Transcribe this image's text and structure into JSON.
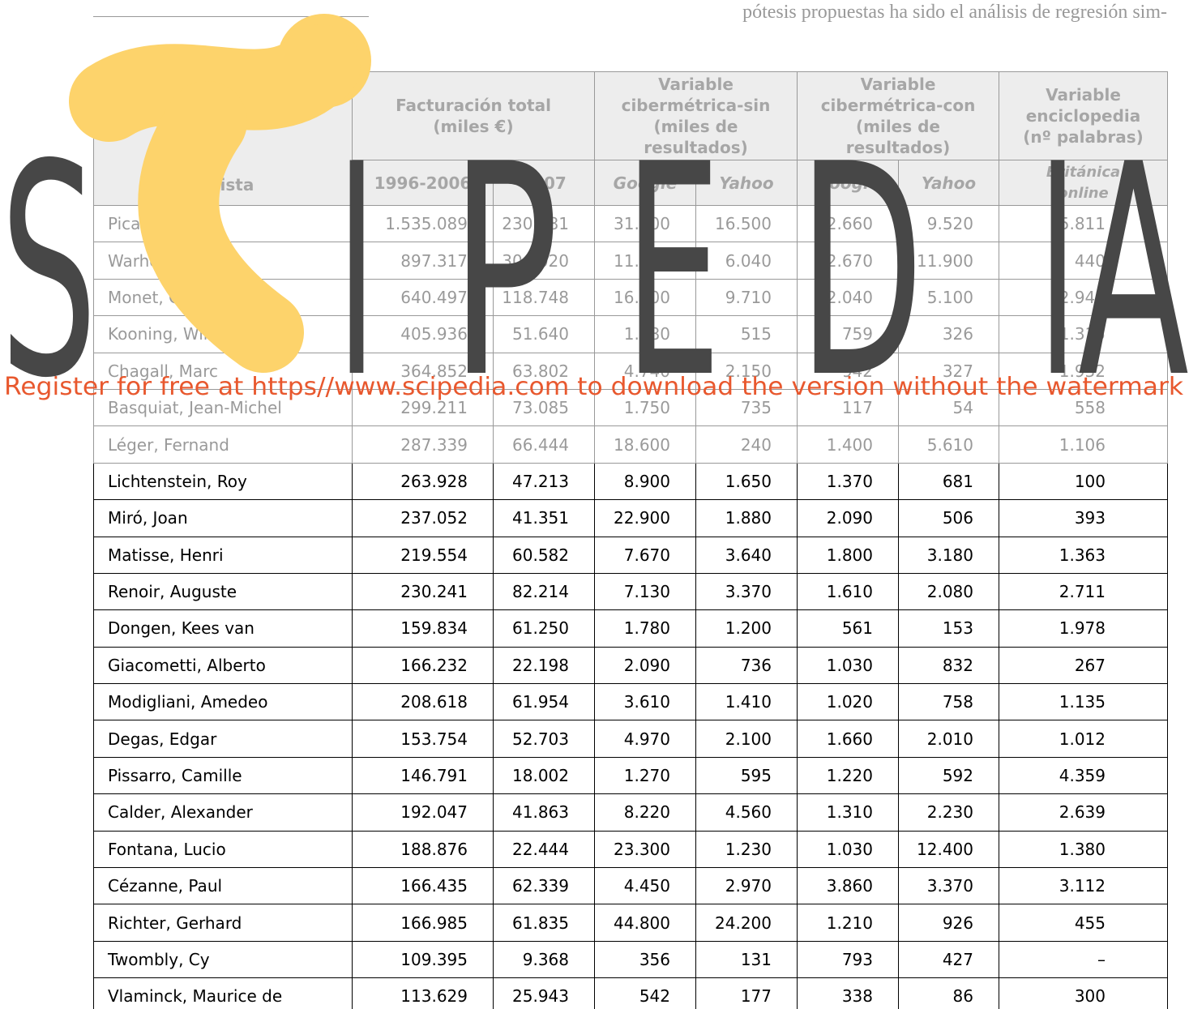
{
  "top_text": "pótesis propuestas ha sido el análisis de regresión sim-",
  "table": {
    "header": {
      "artist": "Artista",
      "groups": [
        {
          "lines": [
            "Facturación total",
            "(miles €)"
          ]
        },
        {
          "lines": [
            "Variable",
            "cibermétrica-sin",
            "(miles de",
            "resultados)"
          ]
        },
        {
          "lines": [
            "Variable",
            "cibermétrica-con",
            "(miles de",
            "resultados)"
          ]
        },
        {
          "lines": [
            "Variable",
            "enciclopedia",
            "(nº palabras)"
          ]
        }
      ],
      "sub": [
        "1996-2006",
        "2007",
        "Google",
        "Yahoo",
        "Google",
        "Yahoo",
        "Británica online"
      ]
    },
    "rows": [
      [
        "Picasso, Pablo",
        "1.535.089",
        "230.181",
        "31.000",
        "16.500",
        "2.660",
        "9.520",
        "5.811"
      ],
      [
        "Warhol, Andy",
        "897.317",
        "304.020",
        "11.000",
        "6.040",
        "2.670",
        "11.900",
        "440"
      ],
      [
        "Monet, Claude",
        "640.497",
        "118.748",
        "16.000",
        "9.710",
        "2.040",
        "5.100",
        "2.942"
      ],
      [
        "Kooning, Willem de",
        "405.936",
        "51.640",
        "1.080",
        "515",
        "759",
        "326",
        "1.315"
      ],
      [
        "Chagall, Marc",
        "364.852",
        "63.802",
        "4.740",
        "2.150",
        "942",
        "327",
        "1.932"
      ],
      [
        "Basquiat, Jean-Michel",
        "299.211",
        "73.085",
        "1.750",
        "735",
        "117",
        "54",
        "558"
      ],
      [
        "Léger, Fernand",
        "287.339",
        "66.444",
        "18.600",
        "240",
        "1.400",
        "5.610",
        "1.106"
      ],
      [
        "Lichtenstein, Roy",
        "263.928",
        "47.213",
        "8.900",
        "1.650",
        "1.370",
        "681",
        "100"
      ],
      [
        "Miró, Joan",
        "237.052",
        "41.351",
        "22.900",
        "1.880",
        "2.090",
        "506",
        "393"
      ],
      [
        "Matisse, Henri",
        "219.554",
        "60.582",
        "7.670",
        "3.640",
        "1.800",
        "3.180",
        "1.363"
      ],
      [
        "Renoir, Auguste",
        "230.241",
        "82.214",
        "7.130",
        "3.370",
        "1.610",
        "2.080",
        "2.711"
      ],
      [
        "Dongen, Kees van",
        "159.834",
        "61.250",
        "1.780",
        "1.200",
        "561",
        "153",
        "1.978"
      ],
      [
        "Giacometti, Alberto",
        "166.232",
        "22.198",
        "2.090",
        "736",
        "1.030",
        "832",
        "267"
      ],
      [
        "Modigliani, Amedeo",
        "208.618",
        "61.954",
        "3.610",
        "1.410",
        "1.020",
        "758",
        "1.135"
      ],
      [
        "Degas, Edgar",
        "153.754",
        "52.703",
        "4.970",
        "2.100",
        "1.660",
        "2.010",
        "1.012"
      ],
      [
        "Pissarro, Camille",
        "146.791",
        "18.002",
        "1.270",
        "595",
        "1.220",
        "592",
        "4.359"
      ],
      [
        "Calder, Alexander",
        "192.047",
        "41.863",
        "8.220",
        "4.560",
        "1.310",
        "2.230",
        "2.639"
      ],
      [
        "Fontana, Lucio",
        "188.876",
        "22.444",
        "23.300",
        "1.230",
        "1.030",
        "12.400",
        "1.380"
      ],
      [
        "Cézanne, Paul",
        "166.435",
        "62.339",
        "4.450",
        "2.970",
        "3.860",
        "3.370",
        "3.112"
      ],
      [
        "Richter, Gerhard",
        "166.985",
        "61.835",
        "44.800",
        "24.200",
        "1.210",
        "926",
        "455"
      ],
      [
        "Twombly, Cy",
        "109.395",
        "9.368",
        "356",
        "131",
        "793",
        "427",
        "–"
      ],
      [
        "Vlaminck, Maurice de",
        "113.629",
        "25.943",
        "542",
        "177",
        "338",
        "86",
        "300"
      ]
    ]
  },
  "watermark": {
    "letters": [
      "S",
      "I",
      "P",
      "E",
      "D",
      "I",
      "A"
    ],
    "notice": "Register for free at https//www.scipedia.com to download the version without the watermark"
  }
}
